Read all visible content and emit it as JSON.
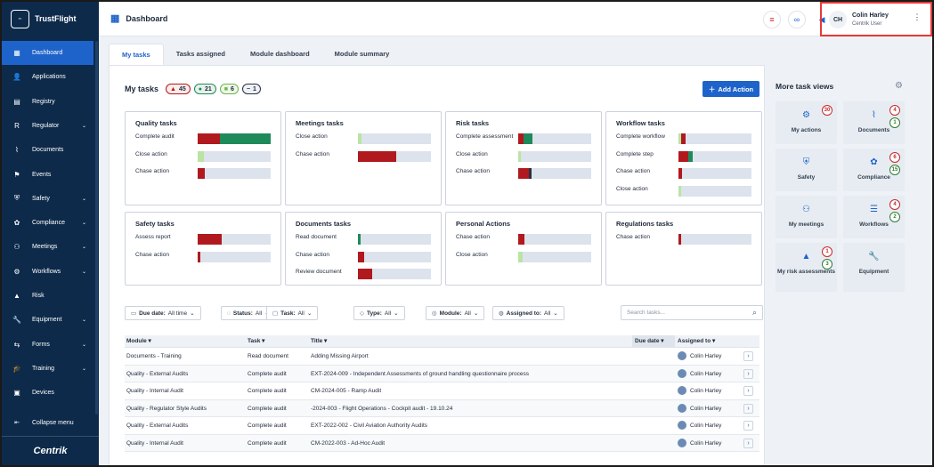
{
  "app": {
    "name": "TrustFlight",
    "footer_brand": "Centrik"
  },
  "colors": {
    "primary": "#1e63c9",
    "sidebar": "#0d2a4a",
    "red": "#b0191e",
    "green": "#1e8a5a",
    "lightgreen": "#b9e4a3",
    "dark": "#2a3040"
  },
  "sidebar": {
    "items": [
      {
        "label": "Dashboard",
        "icon": "dashboard-icon",
        "glyph": "▦",
        "chevron": false,
        "active": true
      },
      {
        "label": "Applications",
        "icon": "person-icon",
        "glyph": "👤",
        "chevron": false
      },
      {
        "label": "Registry",
        "icon": "book-icon",
        "glyph": "▤",
        "chevron": false
      },
      {
        "label": "Regulator",
        "icon": "regulator-icon",
        "glyph": "R",
        "chevron": true
      },
      {
        "label": "Documents",
        "icon": "paperclip-icon",
        "glyph": "⌇",
        "chevron": false
      },
      {
        "label": "Events",
        "icon": "events-icon",
        "glyph": "⚑",
        "chevron": false
      },
      {
        "label": "Safety",
        "icon": "shield-icon",
        "glyph": "⛨",
        "chevron": true
      },
      {
        "label": "Compliance",
        "icon": "compliance-icon",
        "glyph": "✿",
        "chevron": true
      },
      {
        "label": "Meetings",
        "icon": "meetings-icon",
        "glyph": "⚇",
        "chevron": true
      },
      {
        "label": "Workflows",
        "icon": "workflow-icon",
        "glyph": "⚙",
        "chevron": true
      },
      {
        "label": "Risk",
        "icon": "risk-icon",
        "glyph": "▲",
        "chevron": false
      },
      {
        "label": "Equipment",
        "icon": "wrench-icon",
        "glyph": "🔧",
        "chevron": true
      },
      {
        "label": "Forms",
        "icon": "forms-icon",
        "glyph": "⇆",
        "chevron": true
      },
      {
        "label": "Training",
        "icon": "graduation-icon",
        "glyph": "🎓",
        "chevron": true
      },
      {
        "label": "Devices",
        "icon": "devices-icon",
        "glyph": "▣",
        "chevron": false
      }
    ],
    "collapse_label": "Collapse menu"
  },
  "header": {
    "title": "Dashboard",
    "user_initials": "CH",
    "user_name": "Colin Harley",
    "user_role": "Centrik User"
  },
  "tabs": [
    "My tasks",
    "Tasks assigned",
    "Module dashboard",
    "Module summary"
  ],
  "my_tasks": {
    "title": "My tasks",
    "badges": [
      {
        "count": "45",
        "kind": "red",
        "glyph": "▲"
      },
      {
        "count": "21",
        "kind": "green",
        "glyph": "●"
      },
      {
        "count": "6",
        "kind": "lightgreen",
        "glyph": "■"
      },
      {
        "count": "1",
        "kind": "dark",
        "glyph": "−"
      }
    ],
    "add_action": "Add Action"
  },
  "cards": [
    {
      "title": "Quality tasks",
      "rows": [
        {
          "label": "Complete audit",
          "segments": [
            {
              "c": "red",
              "p": 0.3
            },
            {
              "c": "green",
              "p": 0.7
            }
          ]
        },
        {
          "label": "Close action",
          "segments": [
            {
              "c": "lightgreen",
              "p": 0.08
            }
          ]
        },
        {
          "label": "Chase action",
          "segments": [
            {
              "c": "red",
              "p": 0.1
            }
          ]
        }
      ]
    },
    {
      "title": "Meetings tasks",
      "rows": [
        {
          "label": "Close action",
          "segments": [
            {
              "c": "lightgreen",
              "p": 0.05
            }
          ]
        },
        {
          "label": "Chase action",
          "segments": [
            {
              "c": "red",
              "p": 0.52
            }
          ]
        }
      ]
    },
    {
      "title": "Risk tasks",
      "rows": [
        {
          "label": "Complete assessment",
          "segments": [
            {
              "c": "red",
              "p": 0.07
            },
            {
              "c": "green",
              "p": 0.12
            }
          ]
        },
        {
          "label": "Close action",
          "segments": [
            {
              "c": "lightgreen",
              "p": 0.04
            }
          ]
        },
        {
          "label": "Chase action",
          "segments": [
            {
              "c": "red",
              "p": 0.15
            },
            {
              "c": "dark",
              "p": 0.03
            }
          ]
        }
      ]
    },
    {
      "title": "Workflow tasks",
      "rows": [
        {
          "label": "Complete workflow",
          "segments": [
            {
              "c": "lightgreen",
              "p": 0.04
            },
            {
              "c": "red",
              "p": 0.06
            }
          ]
        },
        {
          "label": "Complete step",
          "segments": [
            {
              "c": "red",
              "p": 0.14
            },
            {
              "c": "green",
              "p": 0.06
            }
          ]
        },
        {
          "label": "Chase action",
          "segments": [
            {
              "c": "red",
              "p": 0.05
            }
          ]
        },
        {
          "label": "Close action",
          "segments": [
            {
              "c": "lightgreen",
              "p": 0.04
            }
          ]
        }
      ]
    },
    {
      "title": "Safety tasks",
      "rows": [
        {
          "label": "Assess report",
          "segments": [
            {
              "c": "red",
              "p": 0.33
            }
          ]
        },
        {
          "label": "Chase action",
          "segments": [
            {
              "c": "red",
              "p": 0.04
            }
          ]
        }
      ]
    },
    {
      "title": "Documents tasks",
      "rows": [
        {
          "label": "Read document",
          "segments": [
            {
              "c": "green",
              "p": 0.04
            }
          ]
        },
        {
          "label": "Chase action",
          "segments": [
            {
              "c": "red",
              "p": 0.09
            }
          ]
        },
        {
          "label": "Review document",
          "segments": [
            {
              "c": "red",
              "p": 0.2
            }
          ]
        }
      ]
    },
    {
      "title": "Personal Actions",
      "rows": [
        {
          "label": "Chase action",
          "segments": [
            {
              "c": "red",
              "p": 0.09
            }
          ]
        },
        {
          "label": "Close action",
          "segments": [
            {
              "c": "lightgreen",
              "p": 0.06
            }
          ]
        }
      ]
    },
    {
      "title": "Regulations tasks",
      "rows": [
        {
          "label": "Chase action",
          "segments": [
            {
              "c": "red",
              "p": 0.04
            }
          ]
        }
      ]
    }
  ],
  "filters": [
    {
      "label": "Due date:",
      "value": "All time",
      "icon": "calendar-icon",
      "glyph": "▭"
    },
    {
      "label": "Status:",
      "value": "All",
      "icon": "status-icon",
      "glyph": "◌"
    },
    {
      "label": "Task:",
      "value": "All",
      "icon": "task-icon",
      "glyph": "▢"
    },
    {
      "label": "Type:",
      "value": "All",
      "icon": "tag-icon",
      "glyph": "◇"
    },
    {
      "label": "Module:",
      "value": "All",
      "icon": "module-icon",
      "glyph": "◎"
    },
    {
      "label": "Assigned to:",
      "value": "All",
      "icon": "user-icon",
      "glyph": "◍"
    }
  ],
  "search_placeholder": "Search tasks...",
  "table": {
    "headers": [
      "Module",
      "Task",
      "Title",
      "Due date",
      "Assigned to"
    ],
    "rows": [
      {
        "module": "Documents - Training",
        "task": "Read document",
        "title": "Adding Missing Airport",
        "due": "",
        "assigned": "Colin Harley"
      },
      {
        "module": "Quality - External Audits",
        "task": "Complete audit",
        "title": "EXT-2024-009 - Independent Assessments of ground handling questionnaire process",
        "due": "",
        "assigned": "Colin Harley"
      },
      {
        "module": "Quality - Internal Audit",
        "task": "Complete audit",
        "title": "CM-2024-005 - Ramp Audit",
        "due": "",
        "assigned": "Colin Harley"
      },
      {
        "module": "Quality - Regulator Style Audits",
        "task": "Complete audit",
        "title": "-2024-003 - Flight Operations - Cockpit audit - 19.10.24",
        "due": "",
        "assigned": "Colin Harley"
      },
      {
        "module": "Quality - External Audits",
        "task": "Complete audit",
        "title": "EXT-2022-002 - Civil Aviation Authority Audits",
        "due": "",
        "assigned": "Colin Harley"
      },
      {
        "module": "Quality - Internal Audit",
        "task": "Complete audit",
        "title": "CM-2022-003 - Ad-Hoc Audit",
        "due": "",
        "assigned": "Colin Harley"
      }
    ]
  },
  "side": {
    "title": "More task views",
    "tiles": [
      {
        "label": "My actions",
        "icon": "actions-icon",
        "glyph": "⚙",
        "red": "30",
        "green": ""
      },
      {
        "label": "Documents",
        "icon": "paperclip-icon",
        "glyph": "⌇",
        "red": "4",
        "green": "1"
      },
      {
        "label": "Safety",
        "icon": "shield-icon",
        "glyph": "⛨",
        "red": "",
        "green": ""
      },
      {
        "label": "Compliance",
        "icon": "compliance-icon",
        "glyph": "✿",
        "red": "6",
        "green": "15"
      },
      {
        "label": "My meetings",
        "icon": "meetings-icon",
        "glyph": "⚇",
        "red": "",
        "green": ""
      },
      {
        "label": "Workflows",
        "icon": "workflow-icon",
        "glyph": "☰",
        "red": "4",
        "green": "2"
      },
      {
        "label": "My risk assessments",
        "icon": "risk-icon",
        "glyph": "▲",
        "red": "1",
        "green": "3"
      },
      {
        "label": "Equipment",
        "icon": "wrench-icon",
        "glyph": "🔧",
        "red": "",
        "green": ""
      }
    ]
  }
}
